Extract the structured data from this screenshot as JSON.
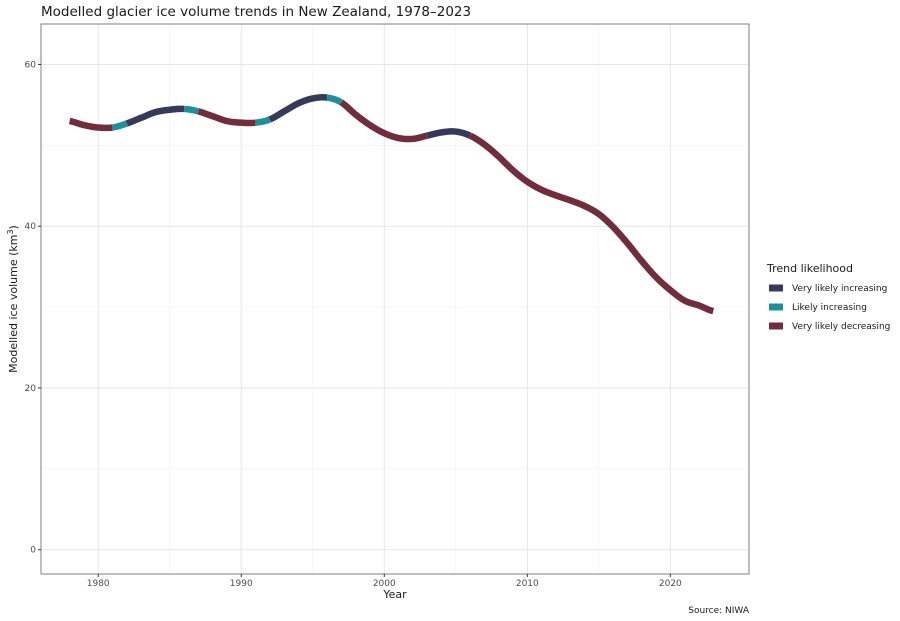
{
  "chart_data": {
    "type": "line",
    "title": "Modelled glacier ice volume trends in New Zealand, 1978–2023",
    "xlabel": "Year",
    "ylabel": "Modelled ice volume (km",
    "ylabel_sup": "3",
    "ylabel_close": ")",
    "caption": "Source: NIWA",
    "xlim": [
      1976,
      2025.5
    ],
    "ylim": [
      -3,
      65
    ],
    "x_ticks": [
      1980,
      1990,
      2000,
      2010,
      2020
    ],
    "x_tick_labels": [
      "1980",
      "1990",
      "2000",
      "2010",
      "2020"
    ],
    "y_ticks": [
      0,
      20,
      40,
      60
    ],
    "y_tick_labels": [
      "0",
      "20",
      "40",
      "60"
    ],
    "grid": true,
    "legend": {
      "title": "Trend likelihood",
      "position": "right",
      "entries": [
        {
          "label": "Very likely increasing",
          "color": "#363959"
        },
        {
          "label": "Likely increasing",
          "color": "#1b9199"
        },
        {
          "label": "Very likely decreasing",
          "color": "#722d3c"
        }
      ]
    },
    "x": [
      1978,
      1979,
      1980,
      1981,
      1982,
      1983,
      1984,
      1985,
      1986,
      1987,
      1988,
      1989,
      1990,
      1991,
      1992,
      1993,
      1994,
      1995,
      1996,
      1997,
      1998,
      1999,
      2000,
      2001,
      2002,
      2003,
      2004,
      2005,
      2006,
      2007,
      2008,
      2009,
      2010,
      2011,
      2012,
      2013,
      2014,
      2015,
      2016,
      2017,
      2018,
      2019,
      2020,
      2021,
      2022,
      2023
    ],
    "values": [
      53.0,
      52.5,
      52.2,
      52.2,
      52.7,
      53.4,
      54.1,
      54.4,
      54.5,
      54.2,
      53.6,
      53.0,
      52.8,
      52.8,
      53.2,
      54.2,
      55.2,
      55.8,
      55.9,
      55.3,
      53.8,
      52.5,
      51.5,
      50.9,
      50.8,
      51.2,
      51.6,
      51.7,
      51.2,
      50.1,
      48.6,
      46.9,
      45.5,
      44.5,
      43.8,
      43.2,
      42.5,
      41.5,
      39.9,
      37.9,
      35.7,
      33.7,
      32.1,
      30.8,
      30.2,
      29.5
    ],
    "trend_segments": [
      {
        "from": 1978,
        "to": 1981,
        "trend": "Very likely decreasing"
      },
      {
        "from": 1981,
        "to": 1982,
        "trend": "Likely increasing"
      },
      {
        "from": 1982,
        "to": 1986,
        "trend": "Very likely increasing"
      },
      {
        "from": 1986,
        "to": 1987,
        "trend": "Likely increasing"
      },
      {
        "from": 1987,
        "to": 1991,
        "trend": "Very likely decreasing"
      },
      {
        "from": 1991,
        "to": 1992,
        "trend": "Likely increasing"
      },
      {
        "from": 1992,
        "to": 1996,
        "trend": "Very likely increasing"
      },
      {
        "from": 1996,
        "to": 1997,
        "trend": "Likely increasing"
      },
      {
        "from": 1997,
        "to": 2003,
        "trend": "Very likely decreasing"
      },
      {
        "from": 2003,
        "to": 2006,
        "trend": "Very likely increasing"
      },
      {
        "from": 2006,
        "to": 2023,
        "trend": "Very likely decreasing"
      }
    ]
  }
}
